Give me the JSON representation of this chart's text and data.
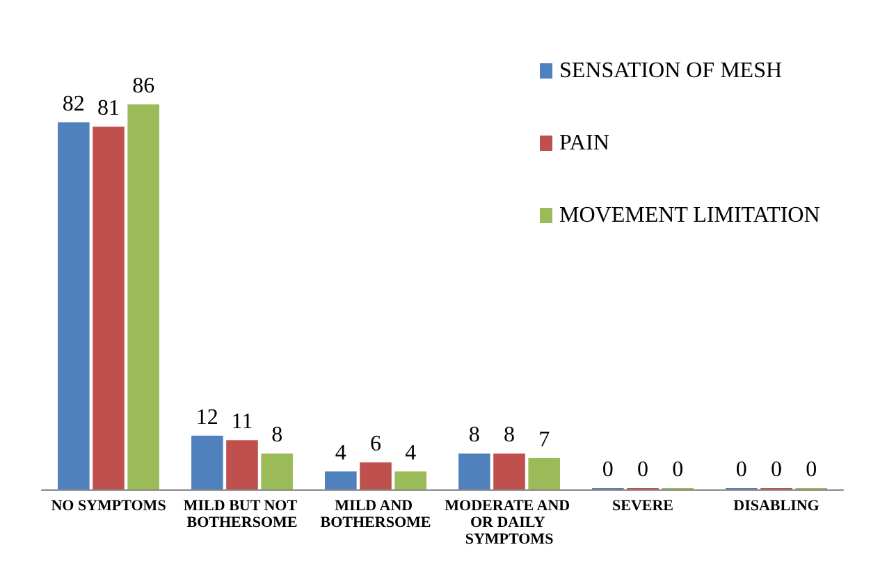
{
  "chart_data": {
    "type": "bar",
    "categories": [
      "NO SYMPTOMS",
      "MILD BUT NOT BOTHERSOME",
      "MILD AND BOTHERSOME",
      "MODERATE AND OR DAILY SYMPTOMS",
      "SEVERE",
      "DISABLING"
    ],
    "series": [
      {
        "name": "SENSATION OF MESH",
        "color": "#4f81bd",
        "values": [
          82,
          12,
          4,
          8,
          0,
          0
        ]
      },
      {
        "name": "PAIN",
        "color": "#c0504d",
        "values": [
          81,
          11,
          6,
          8,
          0,
          0
        ]
      },
      {
        "name": "MOVEMENT LIMITATION",
        "color": "#9bbb59",
        "values": [
          86,
          8,
          4,
          7,
          0,
          0
        ]
      }
    ],
    "data_labels": true,
    "legend": "top right"
  }
}
